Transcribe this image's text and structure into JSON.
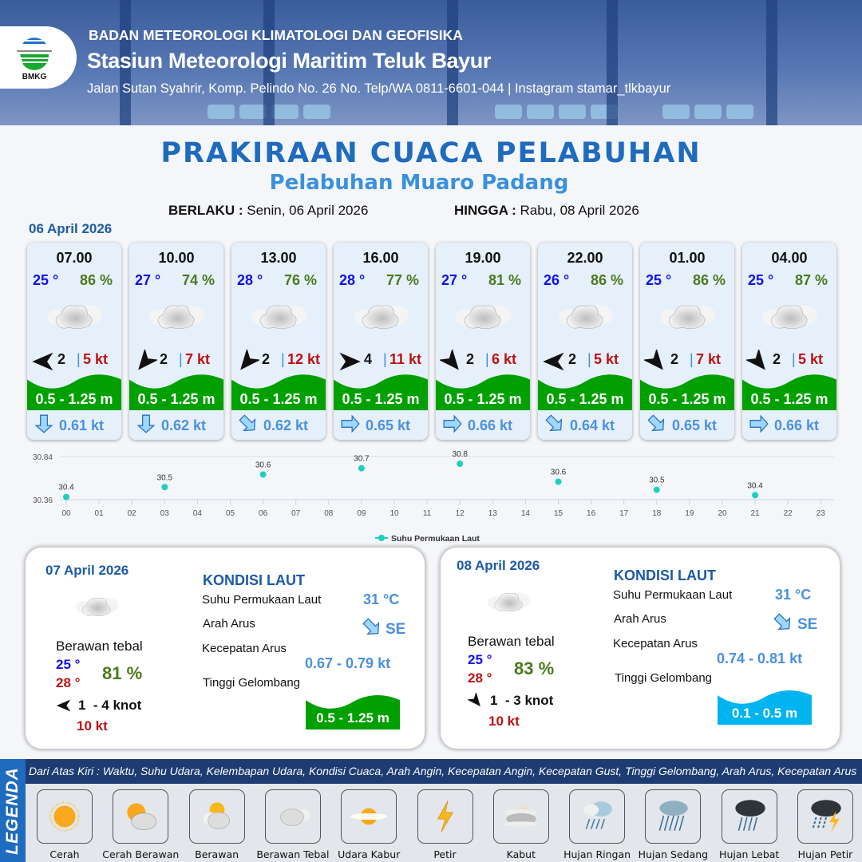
{
  "header": {
    "logo_text": "BMKG",
    "agency": "BADAN METEOROLOGI KLIMATOLOGI DAN GEOFISIKA",
    "station": "Stasiun Meteorologi Maritim Teluk Bayur",
    "address": "Jalan Sutan Syahrir, Komp. Pelindo No. 26 No. Telp/WA 0811-6601-044 | Instagram stamar_tlkbayur"
  },
  "title": "PRAKIRAAN CUACA PELABUHAN",
  "subtitle": "Pelabuhan Muaro Padang",
  "validity": {
    "from_label": "BERLAKU :",
    "from": "Senin, 06 April 2026",
    "to_label": "HINGGA :",
    "to": "Rabu, 08 April 2026"
  },
  "day1": {
    "date": "06 April 2026",
    "slots": [
      {
        "time": "07.00",
        "temp": "25 °",
        "rh": "86 %",
        "weather": "berawan-tebal",
        "wind_dir_deg": -90,
        "wind_speed": "2",
        "gust": "5 kt",
        "wave": "0.5 - 1.25 m",
        "wave_color": "#00a000",
        "current_dir": "S",
        "current_speed": "0.61 kt"
      },
      {
        "time": "10.00",
        "temp": "27 °",
        "rh": "74 %",
        "weather": "berawan-tebal",
        "wind_dir_deg": -140,
        "wind_speed": "2",
        "gust": "7 kt",
        "wave": "0.5 - 1.25 m",
        "wave_color": "#00a000",
        "current_dir": "S",
        "current_speed": "0.62 kt"
      },
      {
        "time": "13.00",
        "temp": "28 °",
        "rh": "76 %",
        "weather": "berawan-tebal",
        "wind_dir_deg": -140,
        "wind_speed": "2",
        "gust": "12 kt",
        "wave": "0.5 - 1.25 m",
        "wave_color": "#00a000",
        "current_dir": "SE",
        "current_speed": "0.62 kt"
      },
      {
        "time": "16.00",
        "temp": "28 °",
        "rh": "77 %",
        "weather": "berawan-tebal",
        "wind_dir_deg": 90,
        "wind_speed": "4",
        "gust": "11 kt",
        "wave": "0.5 - 1.25 m",
        "wave_color": "#00a000",
        "current_dir": "E",
        "current_speed": "0.65 kt"
      },
      {
        "time": "19.00",
        "temp": "27 °",
        "rh": "81 %",
        "weather": "berawan-tebal",
        "wind_dir_deg": 140,
        "wind_speed": "2",
        "gust": "6 kt",
        "wave": "0.5 - 1.25 m",
        "wave_color": "#00a000",
        "current_dir": "E",
        "current_speed": "0.66 kt"
      },
      {
        "time": "22.00",
        "temp": "26 °",
        "rh": "86 %",
        "weather": "berawan-tebal",
        "wind_dir_deg": -90,
        "wind_speed": "2",
        "gust": "5 kt",
        "wave": "0.5 - 1.25 m",
        "wave_color": "#00a000",
        "current_dir": "SE",
        "current_speed": "0.64 kt"
      },
      {
        "time": "01.00",
        "temp": "25 °",
        "rh": "86 %",
        "weather": "berawan-tebal",
        "wind_dir_deg": 140,
        "wind_speed": "2",
        "gust": "7 kt",
        "wave": "0.5 - 1.25 m",
        "wave_color": "#00a000",
        "current_dir": "SE",
        "current_speed": "0.65 kt"
      },
      {
        "time": "04.00",
        "temp": "25 °",
        "rh": "87 %",
        "weather": "berawan-tebal",
        "wind_dir_deg": 140,
        "wind_speed": "2",
        "gust": "5 kt",
        "wave": "0.5 - 1.25 m",
        "wave_color": "#00a000",
        "current_dir": "E",
        "current_speed": "0.66 kt"
      }
    ]
  },
  "chart_data": {
    "type": "scatter",
    "x_ticks": [
      "00",
      "01",
      "02",
      "03",
      "04",
      "05",
      "06",
      "07",
      "08",
      "09",
      "10",
      "11",
      "12",
      "13",
      "14",
      "15",
      "16",
      "17",
      "18",
      "19",
      "20",
      "21",
      "22",
      "23"
    ],
    "y_ticks": [
      "30.84",
      "30.36"
    ],
    "ylim": [
      30.36,
      30.84
    ],
    "grid": "horizontal",
    "legend": "bottom",
    "series": [
      {
        "name": "Suhu Permukaan Laut",
        "color": "#1ecfc0",
        "points": [
          {
            "x": 0,
            "y": 30.39,
            "label": "30.4"
          },
          {
            "x": 3,
            "y": 30.5,
            "label": "30.5"
          },
          {
            "x": 6,
            "y": 30.64,
            "label": "30.6"
          },
          {
            "x": 9,
            "y": 30.71,
            "label": "30.7"
          },
          {
            "x": 12,
            "y": 30.76,
            "label": "30.8"
          },
          {
            "x": 15,
            "y": 30.56,
            "label": "30.6"
          },
          {
            "x": 18,
            "y": 30.47,
            "label": "30.5"
          },
          {
            "x": 21,
            "y": 30.41,
            "label": "30.4"
          }
        ]
      }
    ]
  },
  "days": [
    {
      "date": "07 April 2026",
      "weather_label": "Berawan tebal",
      "tmin": "25 °",
      "tmax": "28 °",
      "rh": "81 %",
      "wind_dir_deg": -90,
      "wind": "1  - 4 knot",
      "gust": "10 kt",
      "sea_title": "KONDISI LAUT",
      "sst_label": "Suhu Permukaan Laut",
      "sst": "31 °C",
      "cur_dir_label": "Arah Arus",
      "cur_dir": "SE",
      "cur_spd_label": "Kecepatan Arus",
      "cur_spd": "0.67 - 0.79 kt",
      "wave_label": "Tinggi Gelombang",
      "wave": "0.5 - 1.25 m",
      "wave_color": "#00a000"
    },
    {
      "date": "08 April 2026",
      "weather_label": "Berawan tebal",
      "tmin": "25 °",
      "tmax": "28 °",
      "rh": "83 %",
      "wind_dir_deg": 140,
      "wind": "1  - 3 knot",
      "gust": "10 kt",
      "sea_title": "KONDISI LAUT",
      "sst_label": "Suhu Permukaan Laut",
      "sst": "31 °C",
      "cur_dir_label": "Arah Arus",
      "cur_dir": "SE",
      "cur_spd_label": "Kecepatan Arus",
      "cur_spd": "0.74 - 0.81 kt",
      "wave_label": "Tinggi Gelombang",
      "wave": "0.1 - 0.5 m",
      "wave_color": "#00b4f0"
    }
  ],
  "legend": {
    "side_label": "LEGENDA",
    "description": "Dari Atas Kiri : Waktu, Suhu Udara, Kelembapan Udara, Kondisi Cuaca, Arah Angin, Kecepatan Angin, Kecepatan Gust, Tinggi Gelombang, Arah Arus, Kecepatan Arus",
    "items": [
      {
        "label": "Cerah",
        "icon": "sun"
      },
      {
        "label": "Cerah Berawan",
        "icon": "sun-cloud"
      },
      {
        "label": "Berawan",
        "icon": "cloud-sun"
      },
      {
        "label": "Berawan Tebal",
        "icon": "cloud"
      },
      {
        "label": "Udara Kabur",
        "icon": "haze"
      },
      {
        "label": "Petir",
        "icon": "lightning"
      },
      {
        "label": "Kabut",
        "icon": "fog"
      },
      {
        "label": "Hujan Ringan",
        "icon": "light-rain"
      },
      {
        "label": "Hujan Sedang",
        "icon": "moderate-rain"
      },
      {
        "label": "Hujan Lebat",
        "icon": "heavy-rain"
      },
      {
        "label": "Hujan Petir",
        "icon": "thunderstorm"
      }
    ]
  }
}
